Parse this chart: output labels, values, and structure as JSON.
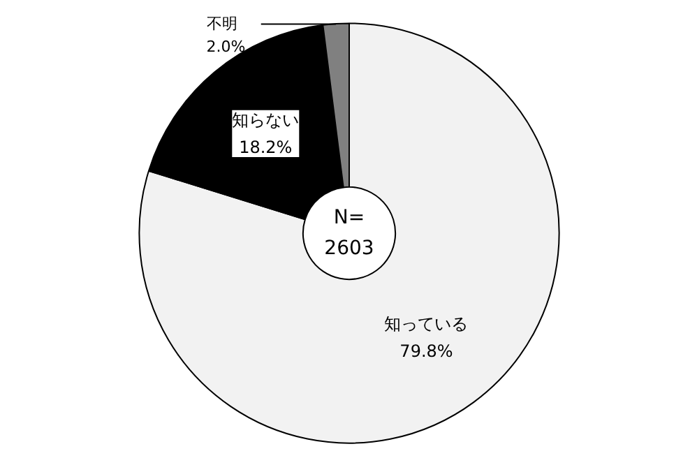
{
  "chart_data": {
    "type": "donut",
    "categories": [
      "知っている",
      "知らない",
      "不明"
    ],
    "values": [
      79.8,
      18.2,
      2.0
    ],
    "value_labels": [
      "79.8%",
      "18.2%",
      "2.0%"
    ],
    "colors": [
      "#f2f2f2",
      "#000000",
      "#808080"
    ],
    "annotations": [
      "N=\n2603"
    ]
  }
}
